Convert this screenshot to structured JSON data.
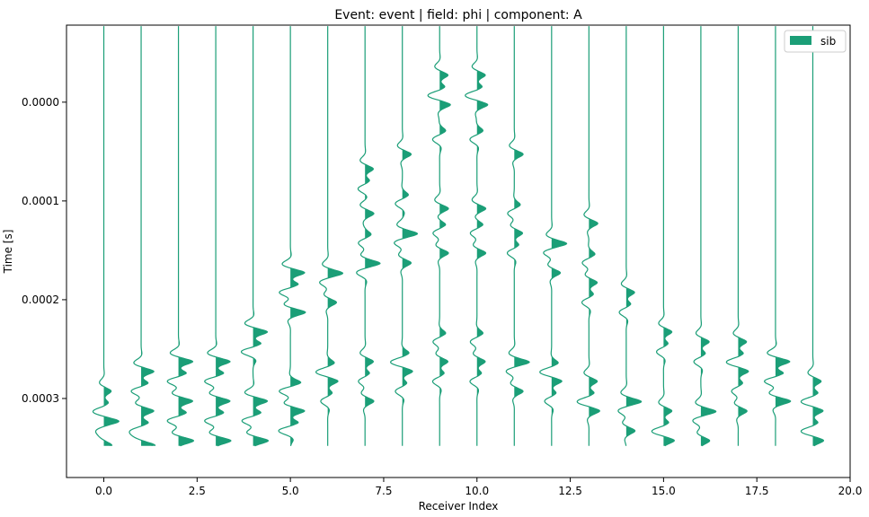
{
  "chart_data": {
    "type": "line",
    "title": "Event: event | field: phi | component: A",
    "xlabel": "Receiver Index",
    "ylabel": "Time [s]",
    "xlim": [
      -1.0,
      20.0
    ],
    "ylim_inverted": [
      0.00038,
      -7.8e-05
    ],
    "x_ticks": [
      0.0,
      2.5,
      5.0,
      7.5,
      10.0,
      12.5,
      15.0,
      17.5,
      20.0
    ],
    "x_tick_labels": [
      "0.0",
      "2.5",
      "5.0",
      "7.5",
      "10.0",
      "12.5",
      "15.0",
      "17.5",
      "20.0"
    ],
    "y_ticks": [
      0.0,
      0.0001,
      0.0002,
      0.0003
    ],
    "y_tick_labels": [
      "0.0000",
      "0.0001",
      "0.0002",
      "0.0003"
    ],
    "legend": {
      "position": "top-right",
      "entries": [
        {
          "label": "sib",
          "color": "#1b9e77"
        }
      ]
    },
    "series_color": "#1b9e77",
    "trace_time_range": [
      -7.7e-05,
      0.000348
    ],
    "traces": [
      {
        "receiver": 0,
        "arrivals": [
          0.00029,
          0.00031,
          0.00032,
          0.00033,
          0.000345
        ]
      },
      {
        "receiver": 1,
        "arrivals": [
          0.00027,
          0.00029,
          0.00031,
          0.00033,
          0.000345
        ]
      },
      {
        "receiver": 2,
        "arrivals": [
          0.00026,
          0.00028,
          0.0003,
          0.00032,
          0.00034
        ]
      },
      {
        "receiver": 3,
        "arrivals": [
          0.00026,
          0.00028,
          0.0003,
          0.00032,
          0.00034
        ]
      },
      {
        "receiver": 4,
        "arrivals": [
          0.00023,
          0.00025,
          0.0003,
          0.00032,
          0.00034
        ]
      },
      {
        "receiver": 5,
        "arrivals": [
          0.00017,
          0.00019,
          0.00021,
          0.00029,
          0.00031,
          0.00033
        ]
      },
      {
        "receiver": 6,
        "arrivals": [
          0.00017,
          0.00018,
          0.0002,
          0.00027,
          0.00028,
          0.0003
        ]
      },
      {
        "receiver": 7,
        "arrivals": [
          6.5e-05,
          8.5e-05,
          0.00011,
          0.00014,
          0.00016,
          0.00017,
          0.00026,
          0.00028,
          0.0003
        ]
      },
      {
        "receiver": 8,
        "arrivals": [
          5e-05,
          0.0001,
          0.00013,
          0.00014,
          0.00016,
          0.00026,
          0.00027,
          0.00029
        ]
      },
      {
        "receiver": 9,
        "arrivals": [
          -3e-05,
          -1e-05,
          0.0,
          3.5e-05,
          0.000105,
          0.00013,
          0.00015,
          0.00024,
          0.00026,
          0.00028
        ]
      },
      {
        "receiver": 10,
        "arrivals": [
          -3e-05,
          -1e-05,
          0.0,
          3.5e-05,
          0.000105,
          0.00013,
          0.00015,
          0.00024,
          0.00026,
          0.00028
        ]
      },
      {
        "receiver": 11,
        "arrivals": [
          5e-05,
          0.00011,
          0.00013,
          0.00015,
          0.00026,
          0.00027,
          0.00029
        ]
      },
      {
        "receiver": 12,
        "arrivals": [
          0.00014,
          0.00015,
          0.00017,
          0.00027,
          0.00028,
          0.0003
        ]
      },
      {
        "receiver": 13,
        "arrivals": [
          0.00012,
          0.00016,
          0.00018,
          0.0002,
          0.00028,
          0.0003,
          0.00031
        ]
      },
      {
        "receiver": 14,
        "arrivals": [
          0.00019,
          0.00021,
          0.0003,
          0.00031,
          0.00033
        ]
      },
      {
        "receiver": 15,
        "arrivals": [
          0.00023,
          0.00025,
          0.00031,
          0.00033,
          0.00034
        ]
      },
      {
        "receiver": 16,
        "arrivals": [
          0.00024,
          0.00026,
          0.00031,
          0.00032,
          0.00034
        ]
      },
      {
        "receiver": 17,
        "arrivals": [
          0.00024,
          0.00026,
          0.00027,
          0.00029,
          0.00031
        ]
      },
      {
        "receiver": 18,
        "arrivals": [
          0.00026,
          0.00028,
          0.0003
        ]
      },
      {
        "receiver": 19,
        "arrivals": [
          0.00028,
          0.0003,
          0.00031,
          0.00033,
          0.00034
        ]
      }
    ]
  }
}
